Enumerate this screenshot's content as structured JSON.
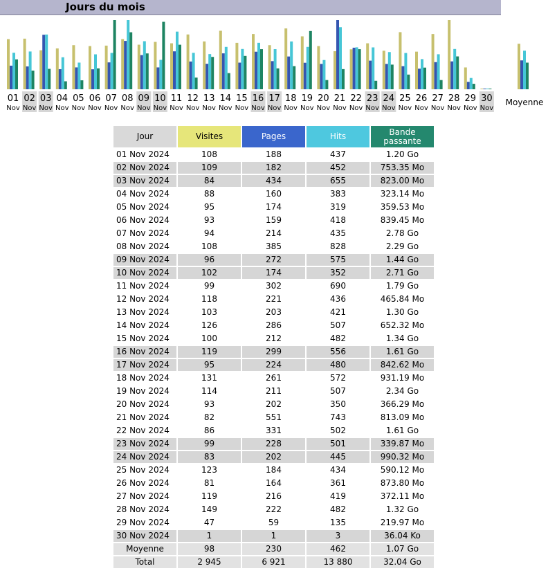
{
  "title": "Jours du mois",
  "colors": {
    "visits": "#c7c06e",
    "pages": "#3556b0",
    "hits": "#46c6d6",
    "bandwidth": "#1e8462",
    "weekend_bg": "#d6d6d6"
  },
  "chart_data": {
    "type": "bar",
    "categories": [
      "01",
      "02",
      "03",
      "04",
      "05",
      "06",
      "07",
      "08",
      "09",
      "10",
      "11",
      "12",
      "13",
      "14",
      "15",
      "16",
      "17",
      "18",
      "19",
      "20",
      "21",
      "22",
      "23",
      "24",
      "25",
      "26",
      "27",
      "28",
      "29",
      "30"
    ],
    "category_sub": "Nov",
    "weekend_indices": [
      1,
      2,
      8,
      9,
      15,
      16,
      22,
      23,
      29
    ],
    "average_label": "Moyenne",
    "series": [
      {
        "name": "Visites",
        "values": [
          108,
          109,
          84,
          88,
          95,
          93,
          94,
          108,
          96,
          102,
          99,
          118,
          103,
          126,
          100,
          119,
          95,
          131,
          114,
          93,
          82,
          86,
          99,
          83,
          123,
          81,
          119,
          149,
          47,
          1
        ],
        "average": 98
      },
      {
        "name": "Pages",
        "values": [
          188,
          182,
          434,
          160,
          174,
          159,
          214,
          385,
          272,
          174,
          302,
          221,
          203,
          286,
          212,
          299,
          224,
          261,
          211,
          202,
          551,
          331,
          228,
          202,
          184,
          164,
          216,
          222,
          59,
          1
        ],
        "average": 230
      },
      {
        "name": "Hits",
        "values": [
          437,
          452,
          655,
          383,
          319,
          418,
          435,
          828,
          575,
          352,
          690,
          436,
          421,
          507,
          482,
          556,
          480,
          572,
          507,
          350,
          743,
          502,
          501,
          445,
          434,
          361,
          419,
          482,
          135,
          3
        ],
        "average": 462
      },
      {
        "name": "Bande passante",
        "values": [
          1.2,
          0.75,
          0.82,
          0.32,
          0.36,
          0.84,
          2.78,
          2.29,
          1.44,
          2.71,
          1.79,
          0.47,
          1.3,
          0.65,
          1.34,
          1.61,
          0.84,
          0.93,
          2.34,
          0.37,
          0.81,
          1.61,
          0.34,
          0.99,
          0.59,
          0.87,
          0.37,
          1.32,
          0.22,
          4e-05
        ],
        "average": 1.07
      }
    ]
  },
  "table": {
    "headers": [
      "Jour",
      "Visites",
      "Pages",
      "Hits",
      "Bande passante"
    ],
    "rows": [
      [
        "01 Nov 2024",
        "108",
        "188",
        "437",
        "1.20 Go"
      ],
      [
        "02 Nov 2024",
        "109",
        "182",
        "452",
        "753.35 Mo"
      ],
      [
        "03 Nov 2024",
        "84",
        "434",
        "655",
        "823.00 Mo"
      ],
      [
        "04 Nov 2024",
        "88",
        "160",
        "383",
        "323.14 Mo"
      ],
      [
        "05 Nov 2024",
        "95",
        "174",
        "319",
        "359.53 Mo"
      ],
      [
        "06 Nov 2024",
        "93",
        "159",
        "418",
        "839.45 Mo"
      ],
      [
        "07 Nov 2024",
        "94",
        "214",
        "435",
        "2.78 Go"
      ],
      [
        "08 Nov 2024",
        "108",
        "385",
        "828",
        "2.29 Go"
      ],
      [
        "09 Nov 2024",
        "96",
        "272",
        "575",
        "1.44 Go"
      ],
      [
        "10 Nov 2024",
        "102",
        "174",
        "352",
        "2.71 Go"
      ],
      [
        "11 Nov 2024",
        "99",
        "302",
        "690",
        "1.79 Go"
      ],
      [
        "12 Nov 2024",
        "118",
        "221",
        "436",
        "465.84 Mo"
      ],
      [
        "13 Nov 2024",
        "103",
        "203",
        "421",
        "1.30 Go"
      ],
      [
        "14 Nov 2024",
        "126",
        "286",
        "507",
        "652.32 Mo"
      ],
      [
        "15 Nov 2024",
        "100",
        "212",
        "482",
        "1.34 Go"
      ],
      [
        "16 Nov 2024",
        "119",
        "299",
        "556",
        "1.61 Go"
      ],
      [
        "17 Nov 2024",
        "95",
        "224",
        "480",
        "842.62 Mo"
      ],
      [
        "18 Nov 2024",
        "131",
        "261",
        "572",
        "931.19 Mo"
      ],
      [
        "19 Nov 2024",
        "114",
        "211",
        "507",
        "2.34 Go"
      ],
      [
        "20 Nov 2024",
        "93",
        "202",
        "350",
        "366.29 Mo"
      ],
      [
        "21 Nov 2024",
        "82",
        "551",
        "743",
        "813.09 Mo"
      ],
      [
        "22 Nov 2024",
        "86",
        "331",
        "502",
        "1.61 Go"
      ],
      [
        "23 Nov 2024",
        "99",
        "228",
        "501",
        "339.87 Mo"
      ],
      [
        "24 Nov 2024",
        "83",
        "202",
        "445",
        "990.32 Mo"
      ],
      [
        "25 Nov 2024",
        "123",
        "184",
        "434",
        "590.12 Mo"
      ],
      [
        "26 Nov 2024",
        "81",
        "164",
        "361",
        "873.80 Mo"
      ],
      [
        "27 Nov 2024",
        "119",
        "216",
        "419",
        "372.11 Mo"
      ],
      [
        "28 Nov 2024",
        "149",
        "222",
        "482",
        "1.32 Go"
      ],
      [
        "29 Nov 2024",
        "47",
        "59",
        "135",
        "219.97 Mo"
      ],
      [
        "30 Nov 2024",
        "1",
        "1",
        "3",
        "36.04 Ko"
      ]
    ],
    "weekend_rows": [
      1,
      2,
      8,
      9,
      15,
      16,
      22,
      23,
      29
    ],
    "average": [
      "Moyenne",
      "98",
      "230",
      "462",
      "1.07 Go"
    ],
    "total": [
      "Total",
      "2 945",
      "6 921",
      "13 880",
      "32.04 Go"
    ]
  }
}
